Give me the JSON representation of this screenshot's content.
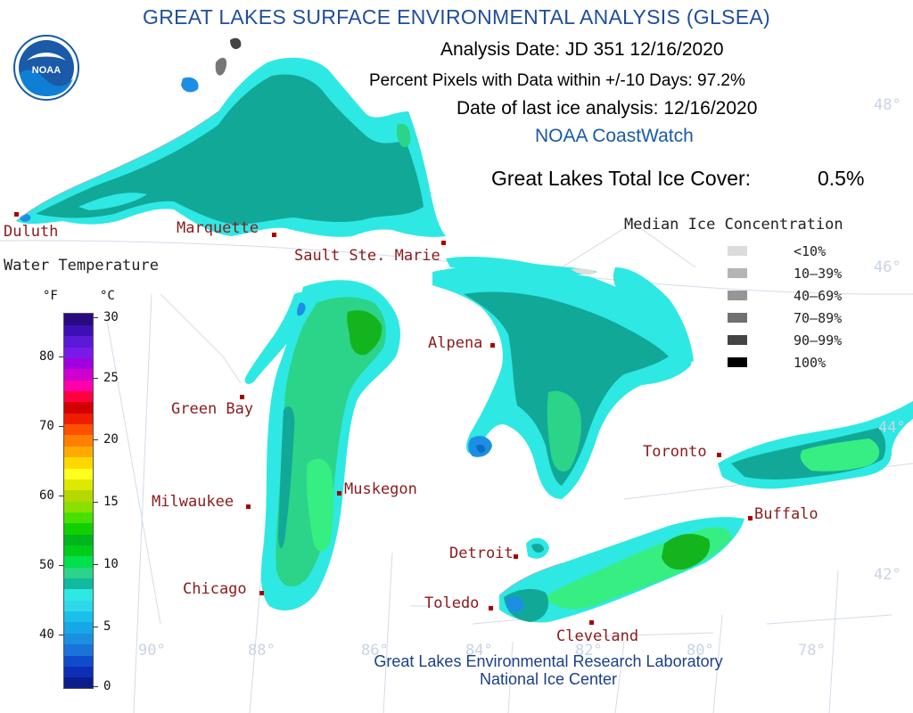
{
  "title": "GREAT LAKES SURFACE ENVIRONMENTAL ANALYSIS (GLSEA)",
  "logo_text": "NOAA",
  "analysis_date": "Analysis Date:  JD 351 12/16/2020",
  "percent_pixels": "Percent Pixels with Data within +/-10 Days:  97.2%",
  "last_ice": "Date of last ice analysis: 12/16/2020",
  "coastwatch": "NOAA CoastWatch",
  "total_ice_label": "Great Lakes Total Ice Cover:",
  "total_ice_value": "0.5%",
  "ice_legend": {
    "title": "Median Ice Concentration",
    "items": [
      {
        "label": "<10%",
        "color": "#dcdcdc"
      },
      {
        "label": "10–39%",
        "color": "#b4b4b4"
      },
      {
        "label": "40–69%",
        "color": "#969696"
      },
      {
        "label": "70–89%",
        "color": "#707070"
      },
      {
        "label": "90–99%",
        "color": "#444444"
      },
      {
        "label": "100%",
        "color": "#000000"
      }
    ]
  },
  "temp_scale": {
    "title": "Water Temperature",
    "unit_f": "°F",
    "unit_c": "°C",
    "f_ticks": [
      "80",
      "70",
      "60",
      "50",
      "40"
    ],
    "c_ticks": [
      "30",
      "25",
      "20",
      "15",
      "10",
      "5",
      "0"
    ],
    "colors": [
      "#0b1e8c",
      "#0c2fb5",
      "#0f4ccc",
      "#1a73d8",
      "#1b8fe0",
      "#17a6e6",
      "#19c0ea",
      "#2ed8ea",
      "#2ee8e3",
      "#12b8a0",
      "#2bd488",
      "#00e14a",
      "#00cc1a",
      "#00b51e",
      "#10d000",
      "#48e000",
      "#8ae000",
      "#b4d800",
      "#dfe800",
      "#ffff20",
      "#ffd800",
      "#ffaa00",
      "#ff7f00",
      "#ff5000",
      "#f01c00",
      "#d20000",
      "#ff0040",
      "#ff00aa",
      "#d000d0",
      "#a000e0",
      "#7a1ae8",
      "#5a1ad8",
      "#3c10b4",
      "#2a0a80"
    ]
  },
  "cities": [
    {
      "name": "Duluth"
    },
    {
      "name": "Marquette"
    },
    {
      "name": "Sault Ste. Marie"
    },
    {
      "name": "Alpena"
    },
    {
      "name": "Green Bay"
    },
    {
      "name": "Milwaukee"
    },
    {
      "name": "Muskegon"
    },
    {
      "name": "Chicago"
    },
    {
      "name": "Detroit"
    },
    {
      "name": "Toledo"
    },
    {
      "name": "Cleveland"
    },
    {
      "name": "Toronto"
    },
    {
      "name": "Buffalo"
    }
  ],
  "grid_labels": {
    "lat": [
      "48°",
      "46°",
      "44°",
      "42°"
    ],
    "lon": [
      "90°",
      "88°",
      "86°",
      "84°",
      "82°",
      "80°",
      "78°"
    ]
  },
  "footer_line1": "Great Lakes Environmental Research Laboratory",
  "footer_line2": "National Ice Center",
  "colors": {
    "teal": "#12a898",
    "cyan": "#2ee8e3",
    "green": "#2bd488",
    "bright_green": "#36ee82",
    "dark_green": "#14b41e",
    "blue": "#1c8fe4",
    "deep_blue": "#0c6ac8",
    "city_marker": "#aa0000",
    "noaa_blue": "#1a5aa8"
  }
}
